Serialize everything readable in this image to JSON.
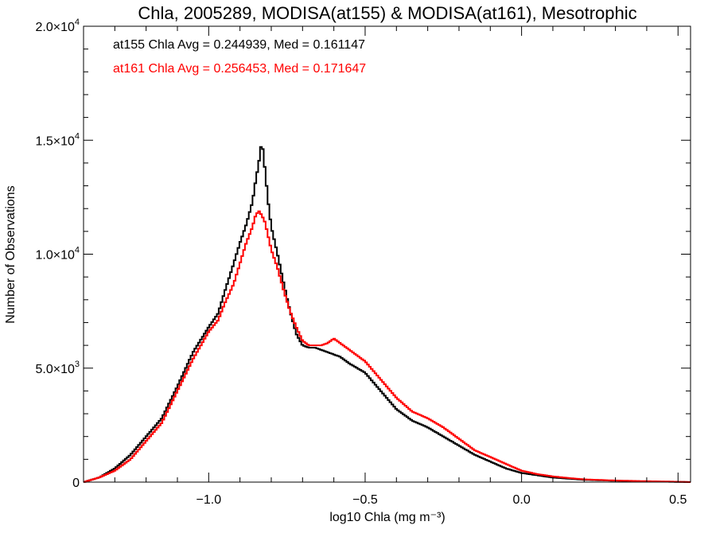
{
  "chart_data": {
    "type": "line",
    "title": "Chla, 2005289, MODISA(at155) & MODISA(at161), Mesotrophic",
    "xlabel": "log10 Chla (mg m⁻³)",
    "ylabel": "Number of Observations",
    "xlim": [
      -1.4,
      0.54
    ],
    "ylim": [
      0,
      20000
    ],
    "x_ticks": [
      {
        "value": -1.0,
        "label": "−1.0"
      },
      {
        "value": -0.5,
        "label": "−0.5"
      },
      {
        "value": 0.0,
        "label": "0.0"
      },
      {
        "value": 0.5,
        "label": "0.5"
      }
    ],
    "y_ticks": [
      {
        "value": 0,
        "mantissa": "0",
        "exp": ""
      },
      {
        "value": 5000,
        "mantissa": "5.0×10",
        "exp": "3"
      },
      {
        "value": 10000,
        "mantissa": "1.0×10",
        "exp": "4"
      },
      {
        "value": 15000,
        "mantissa": "1.5×10",
        "exp": "4"
      },
      {
        "value": 20000,
        "mantissa": "2.0×10",
        "exp": "4"
      }
    ],
    "annotations": [
      {
        "text": "at155 Chla Avg = 0.244939, Med = 0.161147",
        "color": "#000000"
      },
      {
        "text": "at161 Chla Avg = 0.256453, Med = 0.171647",
        "color": "#ff0000"
      }
    ],
    "series": [
      {
        "color": "#000000",
        "x": [
          -1.4,
          -1.35,
          -1.3,
          -1.25,
          -1.2,
          -1.15,
          -1.1,
          -1.05,
          -1.0,
          -0.97,
          -0.95,
          -0.92,
          -0.9,
          -0.88,
          -0.86,
          -0.85,
          -0.84,
          -0.83,
          -0.82,
          -0.81,
          -0.8,
          -0.78,
          -0.76,
          -0.74,
          -0.72,
          -0.7,
          -0.68,
          -0.66,
          -0.64,
          -0.62,
          -0.6,
          -0.58,
          -0.55,
          -0.5,
          -0.45,
          -0.4,
          -0.35,
          -0.3,
          -0.25,
          -0.2,
          -0.15,
          -0.1,
          -0.05,
          0.0,
          0.05,
          0.1,
          0.15,
          0.2,
          0.3,
          0.4,
          0.5,
          0.54
        ],
        "y": [
          0,
          200,
          600,
          1200,
          2000,
          2800,
          4200,
          5700,
          6800,
          7400,
          8300,
          9600,
          10500,
          11300,
          12300,
          13200,
          14000,
          15000,
          13700,
          12300,
          11200,
          10000,
          8700,
          7500,
          6500,
          6000,
          5900,
          5900,
          5800,
          5700,
          5600,
          5500,
          5200,
          4800,
          4000,
          3200,
          2700,
          2400,
          2000,
          1600,
          1200,
          900,
          600,
          400,
          300,
          200,
          150,
          100,
          60,
          30,
          10,
          0
        ]
      },
      {
        "color": "#ff0000",
        "x": [
          -1.4,
          -1.35,
          -1.3,
          -1.25,
          -1.2,
          -1.15,
          -1.1,
          -1.05,
          -1.0,
          -0.97,
          -0.95,
          -0.92,
          -0.9,
          -0.88,
          -0.86,
          -0.85,
          -0.84,
          -0.83,
          -0.82,
          -0.81,
          -0.8,
          -0.78,
          -0.76,
          -0.74,
          -0.72,
          -0.7,
          -0.68,
          -0.66,
          -0.64,
          -0.62,
          -0.6,
          -0.58,
          -0.55,
          -0.5,
          -0.45,
          -0.4,
          -0.35,
          -0.3,
          -0.25,
          -0.2,
          -0.15,
          -0.1,
          -0.05,
          0.0,
          0.05,
          0.1,
          0.15,
          0.2,
          0.3,
          0.4,
          0.5,
          0.54
        ],
        "y": [
          0,
          200,
          500,
          1000,
          1800,
          2600,
          4000,
          5400,
          6600,
          7100,
          7800,
          8700,
          9600,
          10500,
          11200,
          11700,
          11900,
          11700,
          11400,
          10800,
          10200,
          9400,
          8400,
          7500,
          6800,
          6200,
          6000,
          6000,
          6000,
          6100,
          6300,
          6100,
          5800,
          5300,
          4500,
          3700,
          3100,
          2800,
          2400,
          1900,
          1400,
          1100,
          800,
          500,
          350,
          250,
          180,
          120,
          70,
          40,
          15,
          0
        ]
      }
    ]
  }
}
